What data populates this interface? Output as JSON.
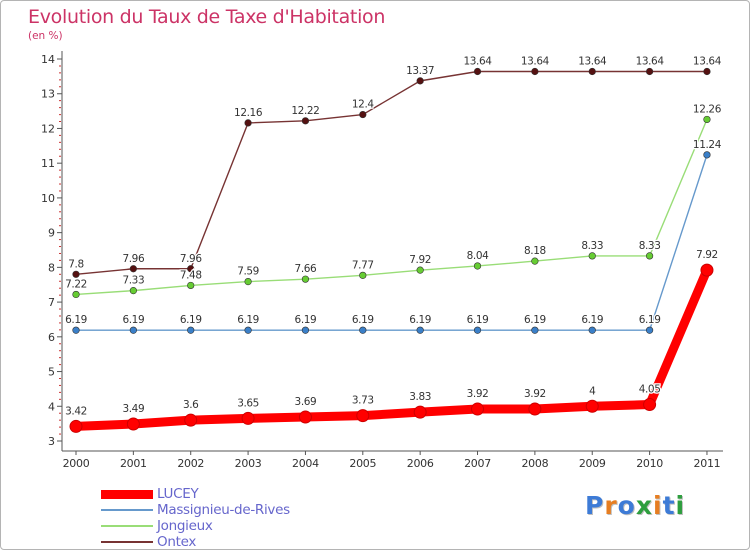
{
  "header": {
    "title": "Evolution du Taux de Taxe d'Habitation",
    "subtitle": "(en %)"
  },
  "logo": {
    "text": "Proxiti",
    "letter_colors": [
      "#3d7bd6",
      "#e67e22",
      "#3d7bd6",
      "#2e9e3e",
      "#e67e22",
      "#3d7bd6",
      "#2e9e3e"
    ]
  },
  "chart_data": {
    "type": "line",
    "title": "Evolution du Taux de Taxe d'Habitation",
    "subtitle": "(en %)",
    "x": [
      "2000",
      "2001",
      "2002",
      "2003",
      "2004",
      "2005",
      "2006",
      "2007",
      "2008",
      "2009",
      "2010",
      "2011"
    ],
    "y_ticks": [
      "3",
      "4",
      "5",
      "6",
      "7",
      "8",
      "9",
      "10",
      "11",
      "12",
      "13",
      "14"
    ],
    "ylim": [
      3,
      14
    ],
    "grid": false,
    "legend_position": "bottom-left",
    "series": [
      {
        "name": "LUCEY",
        "color": "#ff0000",
        "values": [
          3.42,
          3.49,
          3.6,
          3.65,
          3.69,
          3.73,
          3.83,
          3.92,
          3.92,
          4,
          4.05,
          7.92
        ],
        "labels": [
          "3.42",
          "3.49",
          "3.6",
          "3.65",
          "3.69",
          "3.73",
          "3.83",
          "3.92",
          "3.92",
          "4",
          "4.05",
          "7.92"
        ]
      },
      {
        "name": "Massignieu-de-Rives",
        "color": "#6699cc",
        "marker_color": "#3a7fc8",
        "values": [
          6.19,
          6.19,
          6.19,
          6.19,
          6.19,
          6.19,
          6.19,
          6.19,
          6.19,
          6.19,
          6.19,
          11.24
        ],
        "labels": [
          "6.19",
          "6.19",
          "6.19",
          "6.19",
          "6.19",
          "6.19",
          "6.19",
          "6.19",
          "6.19",
          "6.19",
          "6.19",
          "11.24"
        ]
      },
      {
        "name": "Jongieux",
        "color": "#99dd77",
        "marker_color": "#66cc33",
        "values": [
          7.22,
          7.33,
          7.48,
          7.59,
          7.66,
          7.77,
          7.92,
          8.04,
          8.18,
          8.33,
          8.33,
          12.26
        ],
        "labels": [
          "7.22",
          "7.33",
          "7.48",
          "7.59",
          "7.66",
          "7.77",
          "7.92",
          "8.04",
          "8.18",
          "8.33",
          "8.33",
          "12.26"
        ]
      },
      {
        "name": "Ontex",
        "color": "#773333",
        "marker_color": "#551111",
        "values": [
          7.8,
          7.96,
          7.96,
          12.16,
          12.22,
          12.4,
          13.37,
          13.64,
          13.64,
          13.64,
          13.64,
          13.64
        ],
        "labels": [
          "7.8",
          "7.96",
          "7.96",
          "12.16",
          "12.22",
          "12.4",
          "13.37",
          "13.64",
          "13.64",
          "13.64",
          "13.64",
          "13.64"
        ]
      }
    ]
  }
}
